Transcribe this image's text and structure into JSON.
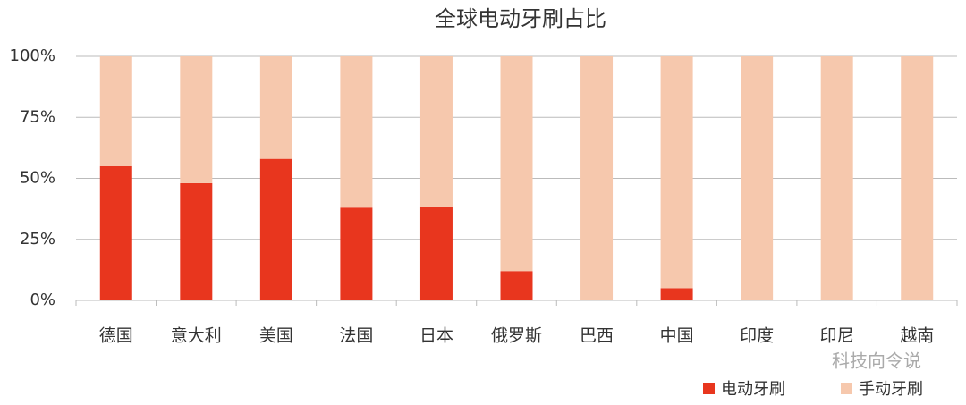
{
  "chart_data": {
    "type": "stacked-bar",
    "title": "全球电动牙刷占比",
    "categories": [
      "德国",
      "意大利",
      "美国",
      "法国",
      "日本",
      "俄罗斯",
      "巴西",
      "中国",
      "印度",
      "印尼",
      "越南"
    ],
    "series": [
      {
        "name": "电动牙刷",
        "color": "#e8361e",
        "values": [
          55,
          48,
          58,
          38,
          38.5,
          12,
          0,
          5,
          0,
          0,
          0
        ]
      },
      {
        "name": "手动牙刷",
        "color": "#f6c8ad",
        "values": [
          45,
          52,
          42,
          62,
          61.5,
          88,
          100,
          95,
          100,
          100,
          100
        ]
      }
    ],
    "ylim": [
      0,
      100
    ],
    "yticks": [
      {
        "value": 0,
        "label": "0%"
      },
      {
        "value": 25,
        "label": "25%"
      },
      {
        "value": 50,
        "label": "50%"
      },
      {
        "value": 75,
        "label": "75%"
      },
      {
        "value": 100,
        "label": "100%"
      }
    ],
    "grid": true,
    "legend": "bottom-right",
    "watermark": "科技向令说"
  }
}
